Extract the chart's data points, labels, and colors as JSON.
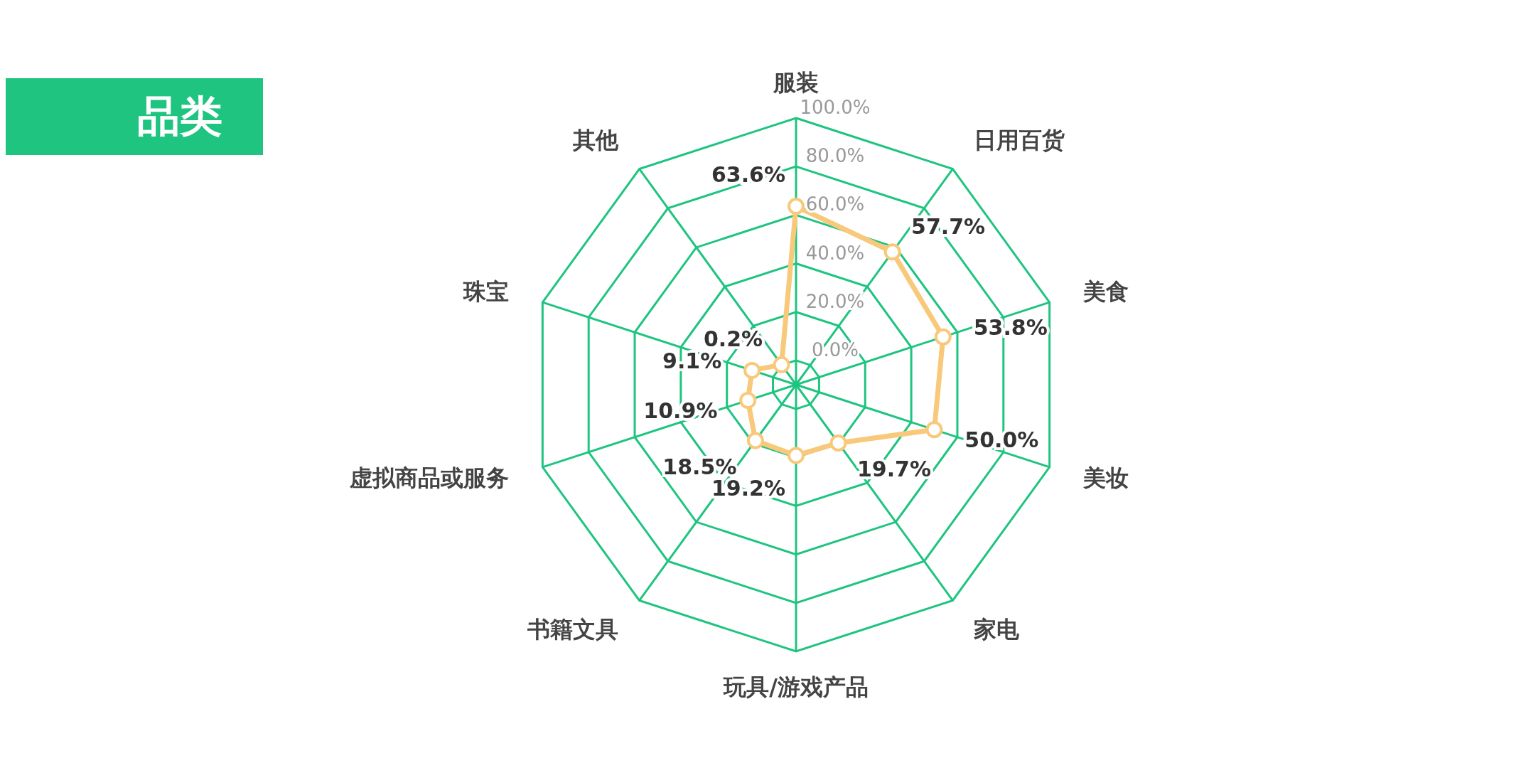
{
  "chart_data": {
    "type": "radar",
    "title": "品类",
    "categories": [
      "服装",
      "日用百货",
      "美食",
      "美妆",
      "家电",
      "玩具/游戏产品",
      "书籍文具",
      "虚拟商品或服务",
      "珠宝",
      "其他"
    ],
    "series": [
      {
        "color": "#f8c97a",
        "values": [
          63.6,
          57.7,
          53.8,
          50.0,
          19.7,
          19.2,
          18.5,
          10.9,
          9.1,
          0.2
        ],
        "value_labels": [
          "63.6%",
          "57.7%",
          "53.8%",
          "50.0%",
          "19.7%",
          "19.2%",
          "18.5%",
          "10.9%",
          "9.1%",
          "0.2%"
        ]
      }
    ],
    "ylim": [
      -10,
      100
    ],
    "yticks": [
      {
        "value": 0,
        "label": "0.0%"
      },
      {
        "value": 20,
        "label": "20.0%"
      },
      {
        "value": 40,
        "label": "40.0%"
      },
      {
        "value": 60,
        "label": "60.0%"
      },
      {
        "value": 80,
        "label": "80.0%"
      },
      {
        "value": 100,
        "label": "100.0%"
      }
    ],
    "grid": true,
    "marker": "circle",
    "legend": false
  }
}
